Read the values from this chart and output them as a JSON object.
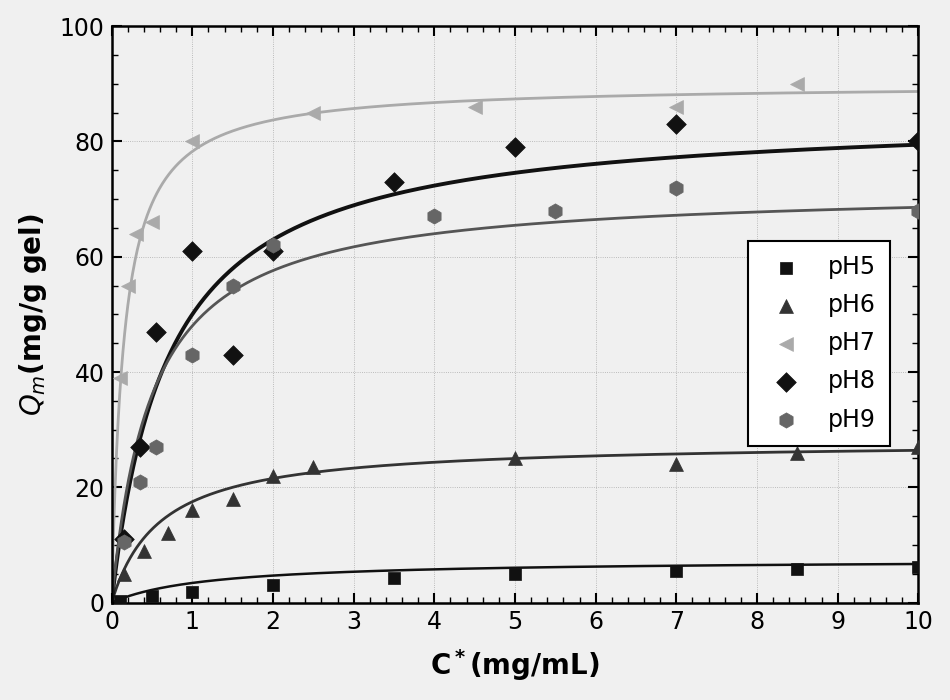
{
  "title": "",
  "xlabel": "C*(mg/mL)",
  "xlim": [
    0,
    10
  ],
  "ylim": [
    0,
    100
  ],
  "xticks": [
    0,
    1,
    2,
    3,
    4,
    5,
    6,
    7,
    8,
    9,
    10
  ],
  "yticks": [
    0,
    20,
    40,
    60,
    80,
    100
  ],
  "bg_color": "#f0f0f0",
  "series": [
    {
      "label": "pH5",
      "scatter_color": "#111111",
      "line_color": "#111111",
      "marker": "s",
      "markersize": 9,
      "linewidth": 1.8,
      "Qmax": 7.5,
      "Kd": 1.2,
      "data_x": [
        0.1,
        0.5,
        1.0,
        2.0,
        3.5,
        5.0,
        7.0,
        8.5,
        10.0
      ],
      "data_y": [
        0.3,
        1.2,
        1.8,
        3.0,
        4.2,
        5.0,
        5.5,
        5.8,
        6.2
      ]
    },
    {
      "label": "pH6",
      "scatter_color": "#333333",
      "line_color": "#333333",
      "marker": "^",
      "markersize": 10,
      "linewidth": 2.0,
      "Qmax": 28.0,
      "Kd": 0.6,
      "data_x": [
        0.15,
        0.4,
        0.7,
        1.0,
        1.5,
        2.0,
        2.5,
        5.0,
        7.0,
        8.5,
        10.0
      ],
      "data_y": [
        5.0,
        9.0,
        12.0,
        16.0,
        18.0,
        22.0,
        23.5,
        25.0,
        24.0,
        26.0,
        27.0
      ]
    },
    {
      "label": "pH7",
      "scatter_color": "#aaaaaa",
      "line_color": "#aaaaaa",
      "marker": "<",
      "markersize": 10,
      "linewidth": 2.0,
      "Qmax": 90.0,
      "Kd": 0.15,
      "data_x": [
        0.1,
        0.2,
        0.3,
        0.5,
        1.0,
        2.5,
        4.5,
        7.0,
        8.5
      ],
      "data_y": [
        39.0,
        55.0,
        64.0,
        66.0,
        80.0,
        85.0,
        86.0,
        86.0,
        90.0
      ]
    },
    {
      "label": "pH8",
      "scatter_color": "#111111",
      "line_color": "#111111",
      "marker": "D",
      "markersize": 10,
      "linewidth": 2.8,
      "Qmax": 85.0,
      "Kd": 0.7,
      "data_x": [
        0.15,
        0.35,
        0.55,
        1.0,
        1.5,
        2.0,
        3.5,
        5.0,
        7.0,
        10.0
      ],
      "data_y": [
        11.0,
        27.0,
        47.0,
        61.0,
        43.0,
        61.0,
        73.0,
        79.0,
        83.0,
        80.0
      ]
    },
    {
      "label": "pH9",
      "scatter_color": "#666666",
      "line_color": "#555555",
      "marker": "h",
      "markersize": 11,
      "linewidth": 2.0,
      "Qmax": 72.0,
      "Kd": 0.5,
      "data_x": [
        0.15,
        0.35,
        0.55,
        1.0,
        1.5,
        2.0,
        4.0,
        5.5,
        7.0,
        10.0
      ],
      "data_y": [
        10.5,
        21.0,
        27.0,
        43.0,
        55.0,
        62.0,
        67.0,
        68.0,
        72.0,
        68.0
      ]
    }
  ],
  "legend_fontsize": 17,
  "tick_fontsize": 17,
  "label_fontsize": 20
}
